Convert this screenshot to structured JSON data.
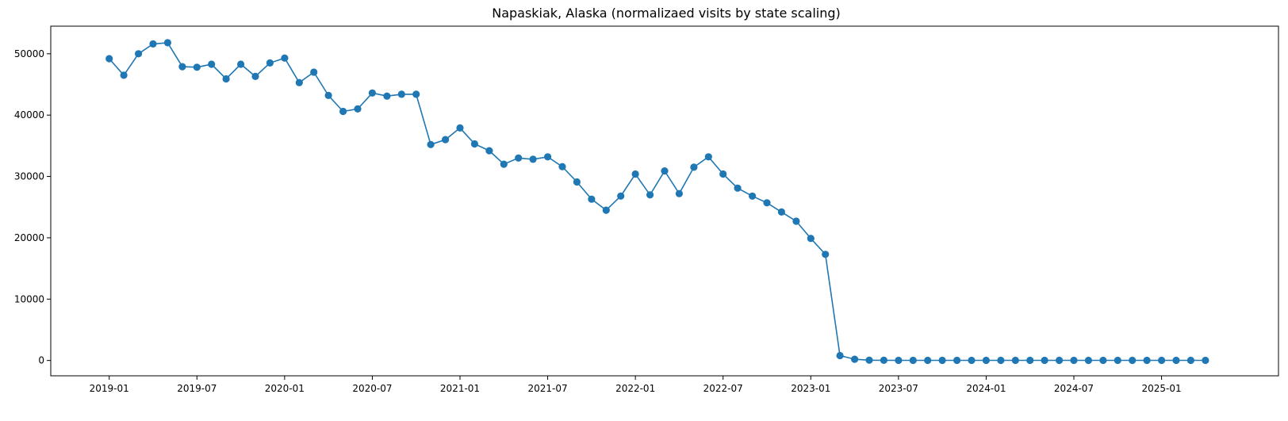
{
  "chart_data": {
    "type": "line",
    "title": "Napaskiak, Alaska (normalizaed visits by state scaling)",
    "xlabel": "",
    "ylabel": "",
    "x_tick_labels": [
      "2019-01",
      "2019-07",
      "2020-01",
      "2020-07",
      "2021-01",
      "2021-07",
      "2022-01",
      "2022-07",
      "2023-01",
      "2023-07",
      "2024-01",
      "2024-07",
      "2025-01"
    ],
    "y_ticks": [
      0,
      10000,
      20000,
      30000,
      40000,
      50000
    ],
    "y_tick_labels": [
      "0",
      "10000",
      "20000",
      "30000",
      "40000",
      "50000"
    ],
    "xlim": [
      "2018-09",
      "2025-09"
    ],
    "ylim": [
      -2500,
      54500
    ],
    "grid": false,
    "color": "#1f77b4",
    "series": [
      {
        "x": [
          "2019-01",
          "2019-02",
          "2019-03",
          "2019-04",
          "2019-05",
          "2019-06",
          "2019-07",
          "2019-08",
          "2019-09",
          "2019-10",
          "2019-11",
          "2019-12",
          "2020-01",
          "2020-02",
          "2020-03",
          "2020-04",
          "2020-05",
          "2020-06",
          "2020-07",
          "2020-08",
          "2020-09",
          "2020-10",
          "2020-11",
          "2020-12",
          "2021-01",
          "2021-02",
          "2021-03",
          "2021-04",
          "2021-05",
          "2021-06",
          "2021-07",
          "2021-08",
          "2021-09",
          "2021-10",
          "2021-11",
          "2021-12",
          "2022-01",
          "2022-02",
          "2022-03",
          "2022-04",
          "2022-05",
          "2022-06",
          "2022-07",
          "2022-08",
          "2022-09",
          "2022-10",
          "2022-11",
          "2022-12",
          "2023-01",
          "2023-02",
          "2023-03",
          "2023-04",
          "2023-05",
          "2023-06",
          "2023-07",
          "2023-08",
          "2023-09",
          "2023-10",
          "2023-11",
          "2023-12",
          "2024-01",
          "2024-02",
          "2024-03",
          "2024-04",
          "2024-05",
          "2024-06",
          "2024-07",
          "2024-08",
          "2024-09",
          "2024-10",
          "2024-11",
          "2024-12",
          "2025-01",
          "2025-02",
          "2025-03",
          "2025-04"
        ],
        "values": [
          49200,
          46500,
          50000,
          51600,
          51800,
          47900,
          47800,
          48300,
          45900,
          48300,
          46300,
          48500,
          49300,
          45300,
          47000,
          43200,
          40600,
          41000,
          43600,
          43100,
          43400,
          43400,
          35200,
          36000,
          37900,
          35300,
          34200,
          32000,
          33000,
          32800,
          33200,
          31600,
          29100,
          26300,
          24500,
          26800,
          30400,
          27000,
          30900,
          27200,
          31500,
          33200,
          30400,
          28100,
          26800,
          25700,
          24200,
          22700,
          19900,
          17300,
          800,
          200,
          50,
          30,
          20,
          20,
          20,
          20,
          20,
          20,
          20,
          20,
          20,
          20,
          20,
          20,
          20,
          20,
          20,
          20,
          20,
          20,
          20,
          20,
          20,
          20
        ]
      }
    ]
  }
}
